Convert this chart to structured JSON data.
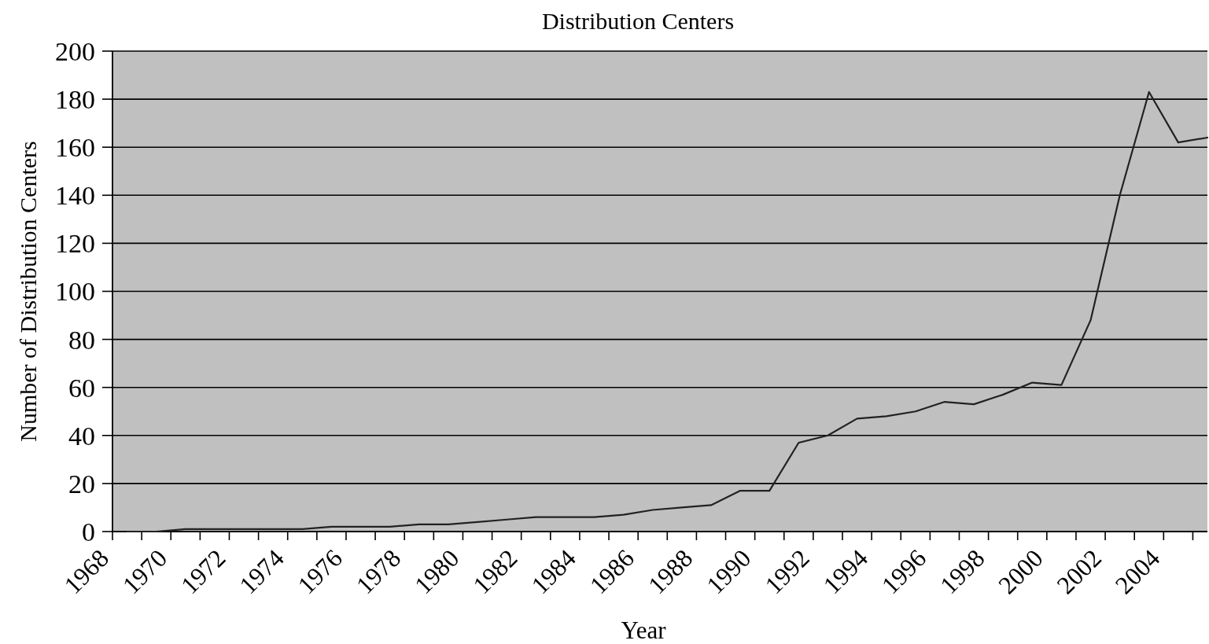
{
  "chart_data": {
    "type": "line",
    "title": "Distribution Centers",
    "xlabel": "Year",
    "ylabel": "Number of Distribution Centers",
    "x": [
      1968.5,
      1969.5,
      1970.5,
      1971.5,
      1972.5,
      1973.5,
      1974.5,
      1975.5,
      1976.5,
      1977.5,
      1978.5,
      1979.5,
      1980.5,
      1981.5,
      1982.5,
      1983.5,
      1984.5,
      1985.5,
      1986.5,
      1987.5,
      1988.5,
      1989.5,
      1990.5,
      1991.5,
      1992.5,
      1993.5,
      1994.5,
      1995.5,
      1996.5,
      1997.5,
      1998.5,
      1999.5,
      2000.5,
      2001.5,
      2002.5,
      2003.5,
      2004.5,
      2005.5
    ],
    "series": [
      {
        "color": "#222222",
        "values": [
          0,
          0,
          1,
          1,
          1,
          1,
          1,
          2,
          2,
          2,
          3,
          3,
          4,
          5,
          6,
          6,
          6,
          7,
          9,
          10,
          11,
          17,
          17,
          37,
          40,
          47,
          48,
          50,
          54,
          53,
          57,
          62,
          61,
          88,
          140,
          183,
          162,
          164
        ]
      }
    ],
    "xlim": [
      1968,
      2005.5
    ],
    "xticks": [
      1968,
      {
        "value": 1969,
        "label": null
      },
      1970,
      {
        "value": 1971,
        "label": null
      },
      1972,
      {
        "value": 1973,
        "label": null
      },
      1974,
      {
        "value": 1975,
        "label": null
      },
      1976,
      {
        "value": 1977,
        "label": null
      },
      1978,
      {
        "value": 1979,
        "label": null
      },
      1980,
      {
        "value": 1981,
        "label": null
      },
      1982,
      {
        "value": 1983,
        "label": null
      },
      1984,
      {
        "value": 1985,
        "label": null
      },
      1986,
      {
        "value": 1987,
        "label": null
      },
      1988,
      {
        "value": 1989,
        "label": null
      },
      1990,
      {
        "value": 1991,
        "label": null
      },
      1992,
      {
        "value": 1993,
        "label": null
      },
      1994,
      {
        "value": 1995,
        "label": null
      },
      1996,
      {
        "value": 1997,
        "label": null
      },
      1998,
      {
        "value": 1999,
        "label": null
      },
      2000,
      {
        "value": 2001,
        "label": null
      },
      2002,
      {
        "value": 2003,
        "label": null
      },
      2004,
      {
        "value": 2005,
        "label": null
      }
    ],
    "ylim": [
      0,
      200
    ],
    "yticks": [
      0,
      20,
      40,
      60,
      80,
      100,
      120,
      140,
      160,
      180,
      200
    ],
    "grid": "y"
  }
}
